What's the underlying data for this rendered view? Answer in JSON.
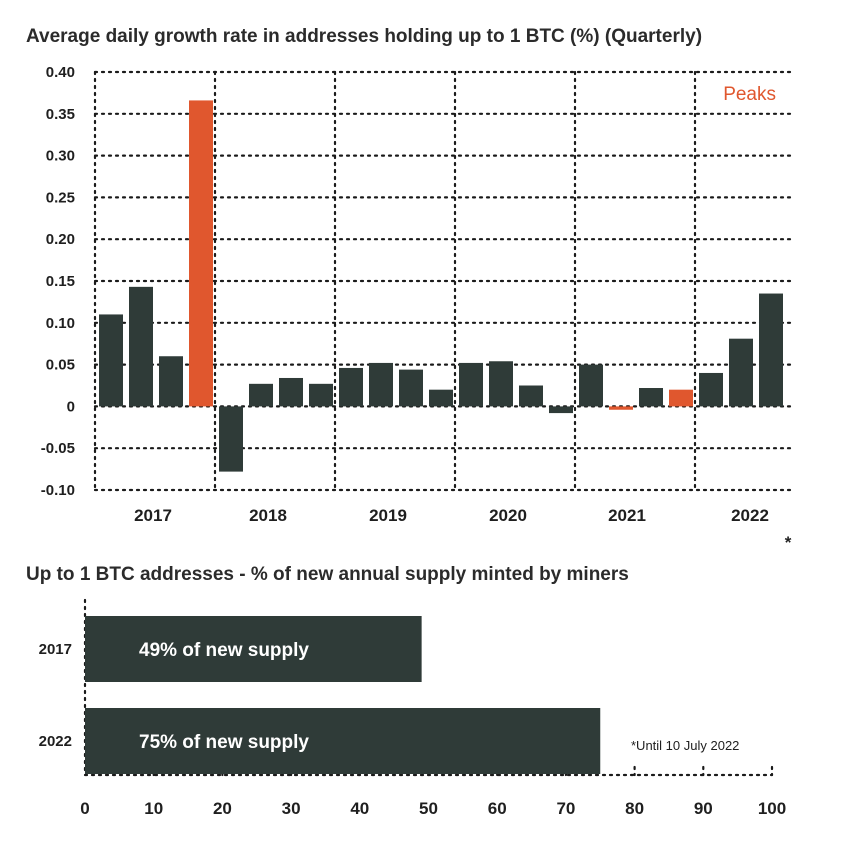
{
  "chart_data": [
    {
      "type": "bar",
      "title": "Average daily growth rate in addresses holding up to 1 BTC  (%)  (Quarterly)",
      "ylim": [
        -0.1,
        0.4
      ],
      "yticks": [
        0.4,
        0.35,
        0.3,
        0.25,
        0.2,
        0.15,
        0.1,
        0.05,
        0,
        -0.05,
        -0.1
      ],
      "ytick_labels": [
        "0.40",
        "0.35",
        "0.30",
        "0.25",
        "0.20",
        "0.15",
        "0.10",
        "0.05",
        "0",
        "-0.05",
        "-0.10"
      ],
      "year_labels": [
        "2017",
        "2018",
        "2019",
        "2020",
        "2021",
        "2022"
      ],
      "grid": "dotted",
      "legend": {
        "text": "Peaks",
        "position": "top-right"
      },
      "asterisk": "*",
      "colors": {
        "normal": "#2f3b38",
        "peak": "#e0572e"
      },
      "quarters": [
        "2017 Q1",
        "2017 Q2",
        "2017 Q3",
        "2017 Q4",
        "2018 Q1",
        "2018 Q2",
        "2018 Q3",
        "2018 Q4",
        "2019 Q1",
        "2019 Q2",
        "2019 Q3",
        "2019 Q4",
        "2020 Q1",
        "2020 Q2",
        "2020 Q3",
        "2020 Q4",
        "2021 Q1",
        "2021 Q2",
        "2021 Q3",
        "2021 Q4",
        "2022 Q1",
        "2022 Q2",
        "2022 Q3"
      ],
      "values": [
        0.11,
        0.143,
        0.06,
        0.366,
        -0.078,
        0.027,
        0.034,
        0.027,
        0.046,
        0.052,
        0.044,
        0.02,
        0.052,
        0.054,
        0.025,
        -0.008,
        0.05,
        -0.004,
        0.022,
        0.02,
        0.04,
        0.081,
        0.135
      ],
      "peak": [
        false,
        false,
        false,
        true,
        false,
        false,
        false,
        false,
        false,
        false,
        false,
        false,
        false,
        false,
        false,
        false,
        false,
        true,
        false,
        true,
        false,
        false,
        false
      ]
    },
    {
      "type": "bar",
      "orientation": "horizontal",
      "title": "Up to 1 BTC addresses - % of new annual supply minted by miners",
      "categories": [
        "2017",
        "2022"
      ],
      "values": [
        49,
        75
      ],
      "bar_labels": [
        "49% of new supply",
        "75% of new supply"
      ],
      "xlim": [
        0,
        100
      ],
      "xticks": [
        "0",
        "10",
        "20",
        "30",
        "40",
        "50",
        "60",
        "70",
        "80",
        "90",
        "100"
      ],
      "note": "*Until 10 July 2022",
      "color": "#2f3b38"
    }
  ]
}
